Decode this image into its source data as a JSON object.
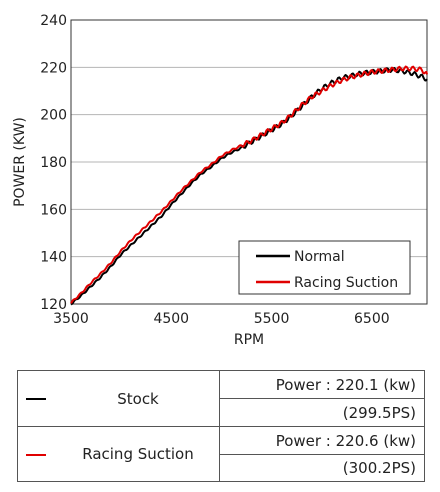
{
  "chart_data": {
    "type": "line",
    "xlabel": "RPM",
    "ylabel": "POWER (KW)",
    "xlim": [
      3500,
      7050
    ],
    "ylim": [
      120,
      240
    ],
    "xticks": [
      3500,
      4500,
      5500,
      6500
    ],
    "yticks": [
      120,
      140,
      160,
      180,
      200,
      220,
      240
    ],
    "grid": "horizontal",
    "legend_position": "bottom-right",
    "series": [
      {
        "name": "Normal",
        "color": "#000000",
        "x": [
          3500,
          3600,
          3700,
          3800,
          3900,
          4000,
          4100,
          4200,
          4300,
          4400,
          4500,
          4600,
          4700,
          4800,
          4900,
          5000,
          5100,
          5200,
          5300,
          5400,
          5500,
          5600,
          5700,
          5800,
          5900,
          6000,
          6100,
          6200,
          6300,
          6400,
          6500,
          6600,
          6700,
          6800,
          6900,
          7000,
          7050
        ],
        "y": [
          120,
          123.5,
          127.5,
          131.5,
          136,
          141,
          145,
          149,
          153,
          157,
          162,
          166.5,
          171,
          175,
          178,
          181.5,
          184,
          186,
          188.5,
          191,
          193.5,
          196,
          199.5,
          203.5,
          207.5,
          211,
          213.5,
          215.5,
          216.5,
          217.5,
          218,
          218.5,
          219,
          218.5,
          217.5,
          216,
          215
        ]
      },
      {
        "name": "Racing Suction",
        "color": "#e00000",
        "x": [
          3500,
          3600,
          3700,
          3800,
          3900,
          4000,
          4100,
          4200,
          4300,
          4400,
          4500,
          4600,
          4700,
          4800,
          4900,
          5000,
          5100,
          5200,
          5300,
          5400,
          5500,
          5600,
          5700,
          5800,
          5900,
          6000,
          6100,
          6200,
          6300,
          6400,
          6500,
          6600,
          6700,
          6800,
          6900,
          7000,
          7050
        ],
        "y": [
          120.5,
          124.5,
          129,
          133,
          137.5,
          142.5,
          147,
          151,
          155,
          159,
          163.5,
          168,
          172,
          176,
          179,
          182.5,
          185,
          187,
          189,
          191.5,
          194,
          196.5,
          200,
          204,
          207.5,
          210,
          212.5,
          214.5,
          216,
          217,
          218,
          218.5,
          219,
          219.5,
          219.5,
          219,
          217
        ]
      }
    ]
  },
  "table": {
    "rows": [
      {
        "name": "Stock",
        "color": "#000000",
        "power": "Power : 220.1 (kw)",
        "ps": "(299.5PS)"
      },
      {
        "name": "Racing Suction",
        "color": "#e00000",
        "power": "Power : 220.6 (kw)",
        "ps": "(300.2PS)"
      }
    ]
  }
}
